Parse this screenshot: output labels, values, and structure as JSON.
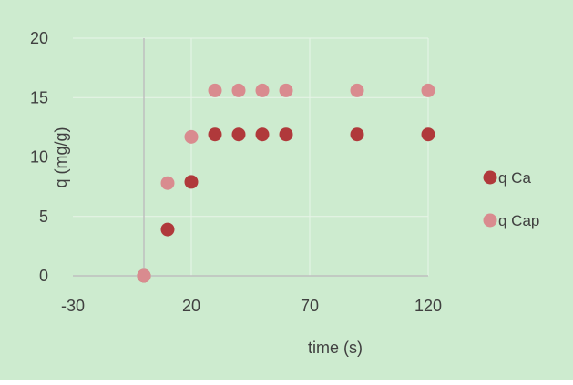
{
  "chart_data": {
    "type": "scatter",
    "title": "",
    "xlabel": "time (s)",
    "ylabel": "q (mg/g)",
    "xlim": [
      -30,
      145
    ],
    "ylim": [
      0,
      20
    ],
    "xticks": [
      -30,
      20,
      70,
      120
    ],
    "yticks": [
      0,
      5,
      10,
      15,
      20
    ],
    "grid": true,
    "legend_position": "right",
    "series": [
      {
        "name": "q Ca",
        "color": "#b0393b",
        "points": [
          [
            0,
            0
          ],
          [
            10,
            3.9
          ],
          [
            20,
            7.9
          ],
          [
            30,
            11.9
          ],
          [
            40,
            11.9
          ],
          [
            50,
            11.9
          ],
          [
            60,
            11.9
          ],
          [
            90,
            11.9
          ],
          [
            120,
            11.9
          ]
        ]
      },
      {
        "name": "q Cap",
        "color": "#d98b8f",
        "points": [
          [
            0,
            0
          ],
          [
            10,
            7.8
          ],
          [
            20,
            11.7
          ],
          [
            30,
            15.6
          ],
          [
            40,
            15.6
          ],
          [
            50,
            15.6
          ],
          [
            60,
            15.6
          ],
          [
            90,
            15.6
          ],
          [
            120,
            15.6
          ]
        ]
      }
    ],
    "colors": {
      "background": "#cdebcf",
      "gridline": "#e8f4e8",
      "axis": "#bfbfbf",
      "text": "#404040"
    }
  }
}
